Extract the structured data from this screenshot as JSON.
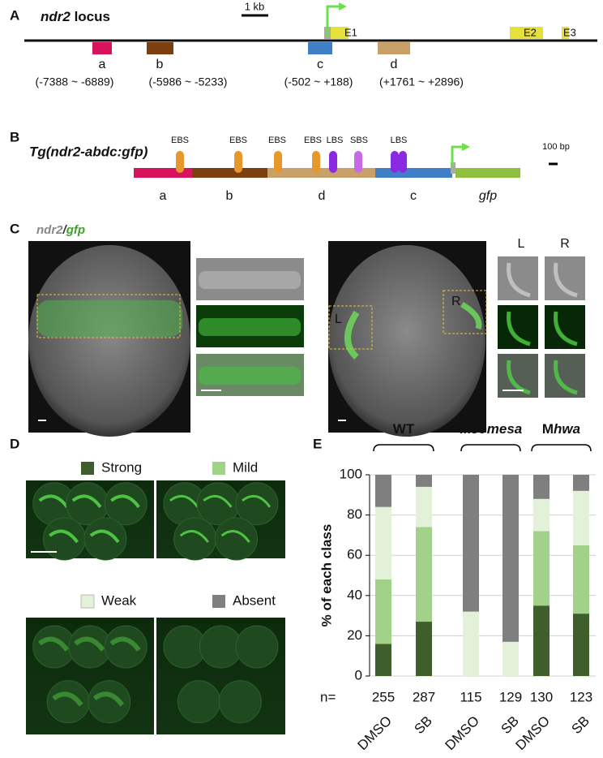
{
  "panels": {
    "A": {
      "label": "A",
      "title_italic": "ndr2",
      "title": " locus",
      "scale": "1 kb",
      "exons": [
        "E1",
        "E2",
        "E3"
      ],
      "regions": [
        {
          "name": "a",
          "range": "(-7388 ~ -6889)"
        },
        {
          "name": "b",
          "range": "(-5986 ~ -5233)"
        },
        {
          "name": "c",
          "range": "(-502 ~ +188)"
        },
        {
          "name": "d",
          "range": "(+1761 ~ +2896)"
        }
      ]
    },
    "B": {
      "label": "B",
      "title": "Tg(ndr2-abdc:gfp)",
      "scale": "100 bp",
      "sites": [
        "EBS",
        "EBS",
        "EBS",
        "EBS",
        "LBS",
        "SBS",
        "LBS"
      ],
      "segments": [
        "a",
        "b",
        "d",
        "c",
        "gfp"
      ]
    },
    "C": {
      "label": "C",
      "title_gray": "ndr2",
      "title_sep": "/",
      "title_green": "gfp",
      "left_box": "L",
      "right_box": "R",
      "col_left": "L",
      "col_right": "R"
    },
    "D": {
      "label": "D"
    },
    "E": {
      "label": "E"
    }
  },
  "chart_data": {
    "type": "bar",
    "stacked": true,
    "ylabel": "% of each class",
    "categories": [
      "DMSO",
      "SB",
      "DMSO",
      "SB",
      "DMSO",
      "SB"
    ],
    "groups": [
      {
        "text": "WT",
        "italic": ""
      },
      {
        "text": "M",
        "italic": "eomesa"
      },
      {
        "text": "M",
        "italic": "hwa"
      }
    ],
    "n_label": "n=",
    "counts": [
      255,
      287,
      115,
      129,
      130,
      123
    ],
    "series": [
      {
        "name": "Strong",
        "color": "#3e5f2b",
        "values": [
          16,
          27,
          0,
          0,
          35,
          31
        ]
      },
      {
        "name": "Mild",
        "color": "#a2d18a",
        "values": [
          32,
          47,
          0,
          0,
          37,
          34
        ]
      },
      {
        "name": "Weak",
        "color": "#e4f1d9",
        "values": [
          36,
          20,
          32,
          17,
          16,
          27
        ]
      },
      {
        "name": "Absent",
        "color": "#7f7f7f",
        "values": [
          16,
          6,
          68,
          83,
          12,
          8
        ]
      }
    ],
    "ylim": [
      0,
      100
    ],
    "yticks": [
      0,
      20,
      40,
      60,
      80,
      100
    ],
    "grid": true
  }
}
